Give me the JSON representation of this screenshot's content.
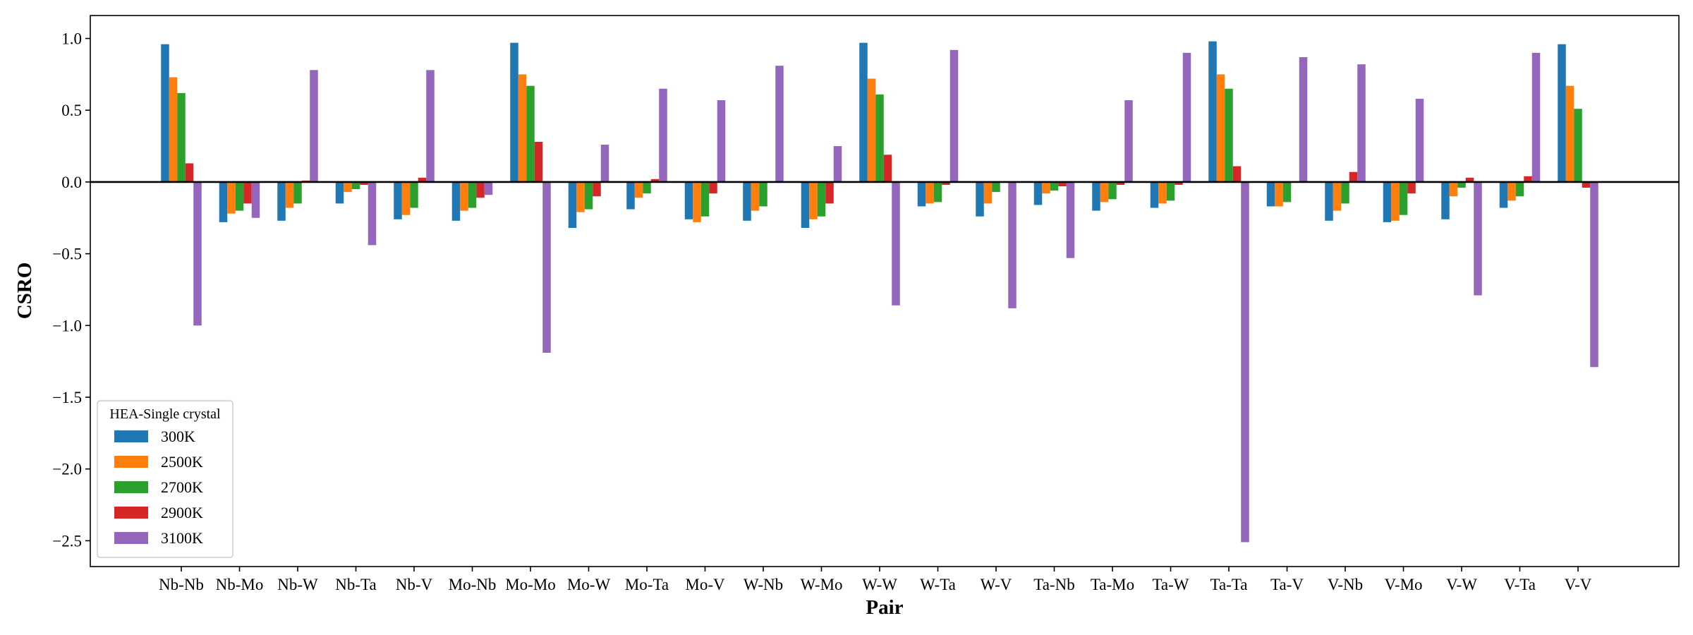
{
  "chart_data": {
    "type": "bar",
    "title": "",
    "xlabel": "Pair",
    "ylabel": "CSRO",
    "ylim": [
      -2.68,
      1.16
    ],
    "yticks": [
      1.0,
      0.5,
      0.0,
      -0.5,
      -1.0,
      -1.5,
      -2.0,
      -2.5
    ],
    "ytick_labels": [
      "1.0",
      "0.5",
      "0.0",
      "−0.5",
      "−1.0",
      "−1.5",
      "−2.0",
      "−2.5"
    ],
    "grid": false,
    "zero_line": true,
    "legend": {
      "title": "HEA-Single crystal",
      "position": "lower-left"
    },
    "categories": [
      "Nb-Nb",
      "Nb-Mo",
      "Nb-W",
      "Nb-Ta",
      "Nb-V",
      "Mo-Nb",
      "Mo-Mo",
      "Mo-W",
      "Mo-Ta",
      "Mo-V",
      "W-Nb",
      "W-Mo",
      "W-W",
      "W-Ta",
      "W-V",
      "Ta-Nb",
      "Ta-Mo",
      "Ta-W",
      "Ta-Ta",
      "Ta-V",
      "V-Nb",
      "V-Mo",
      "V-W",
      "V-Ta",
      "V-V"
    ],
    "series": [
      {
        "name": "300K",
        "color": "#1f77b4",
        "values": [
          0.96,
          -0.28,
          -0.27,
          -0.15,
          -0.26,
          -0.27,
          0.97,
          -0.32,
          -0.19,
          -0.26,
          -0.27,
          -0.32,
          0.97,
          -0.17,
          -0.24,
          -0.16,
          -0.2,
          -0.18,
          0.98,
          -0.17,
          -0.27,
          -0.28,
          -0.26,
          -0.18,
          0.96
        ]
      },
      {
        "name": "2500K",
        "color": "#ff7f0e",
        "values": [
          0.73,
          -0.22,
          -0.18,
          -0.07,
          -0.23,
          -0.2,
          0.75,
          -0.21,
          -0.11,
          -0.28,
          -0.2,
          -0.26,
          0.72,
          -0.15,
          -0.15,
          -0.08,
          -0.14,
          -0.15,
          0.75,
          -0.17,
          -0.2,
          -0.27,
          -0.1,
          -0.13,
          0.67
        ]
      },
      {
        "name": "2700K",
        "color": "#2ca02c",
        "values": [
          0.62,
          -0.2,
          -0.15,
          -0.05,
          -0.18,
          -0.18,
          0.67,
          -0.19,
          -0.08,
          -0.24,
          -0.17,
          -0.24,
          0.61,
          -0.14,
          -0.07,
          -0.06,
          -0.12,
          -0.13,
          0.65,
          -0.14,
          -0.15,
          -0.23,
          -0.04,
          -0.1,
          0.51
        ]
      },
      {
        "name": "2900K",
        "color": "#d62728",
        "values": [
          0.13,
          -0.15,
          0.01,
          -0.02,
          0.03,
          -0.11,
          0.28,
          -0.1,
          0.02,
          -0.08,
          0.0,
          -0.15,
          0.19,
          -0.02,
          0.0,
          -0.03,
          -0.02,
          -0.02,
          0.11,
          0.0,
          0.07,
          -0.08,
          0.03,
          0.04,
          -0.04
        ]
      },
      {
        "name": "3100K",
        "color": "#9467bd",
        "values": [
          -1.0,
          -0.25,
          0.78,
          -0.44,
          0.78,
          -0.09,
          -1.19,
          0.26,
          0.65,
          0.57,
          0.81,
          0.25,
          -0.86,
          0.92,
          -0.88,
          -0.53,
          0.57,
          0.9,
          -2.51,
          0.87,
          0.82,
          0.58,
          -0.79,
          0.9,
          -1.29
        ]
      }
    ]
  }
}
